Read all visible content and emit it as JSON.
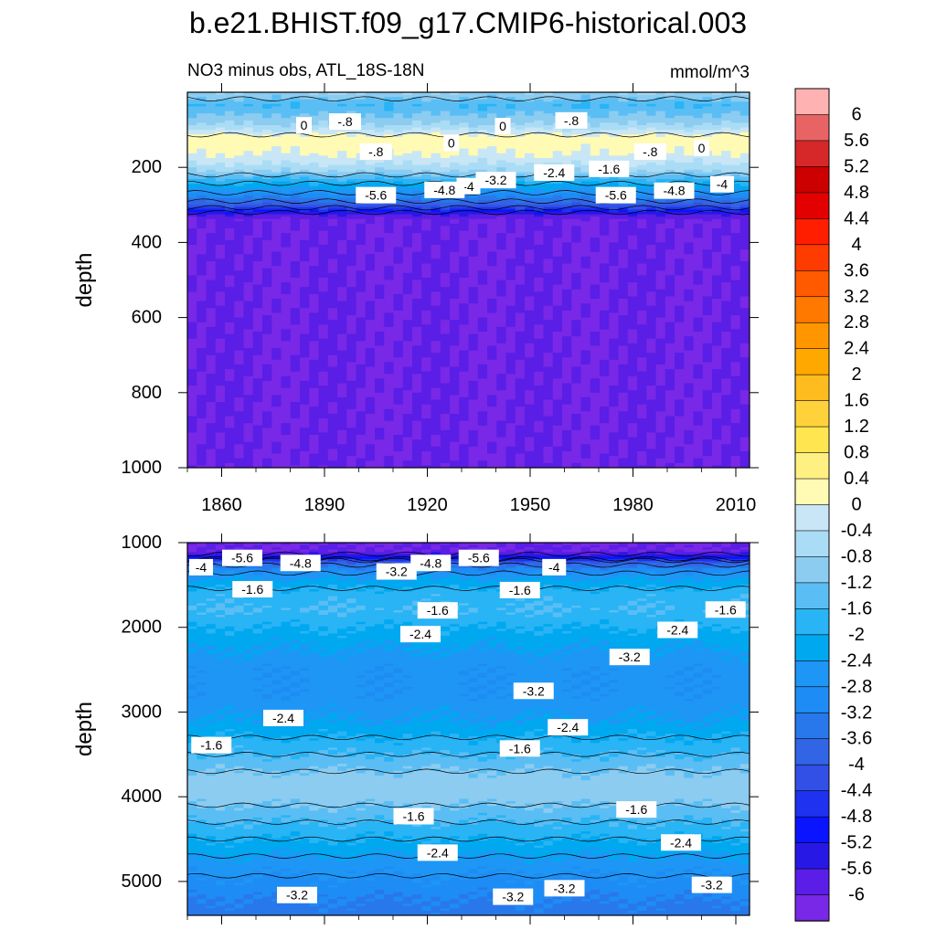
{
  "figure": {
    "title": "b.e21.BHIST.f09_g17.CMIP6-historical.003",
    "subtitle_left": "NO3 minus obs, ATL_18S-18N",
    "subtitle_right": "mmol/m^3"
  },
  "colorbar": {
    "labels": [
      "6",
      "5.6",
      "5.2",
      "4.8",
      "4.4",
      "4",
      "3.6",
      "3.2",
      "2.8",
      "2.4",
      "2",
      "1.6",
      "1.2",
      "0.8",
      "0.4",
      "0",
      "-0.4",
      "-0.8",
      "-1.2",
      "-1.6",
      "-2",
      "-2.4",
      "-2.8",
      "-3.2",
      "-3.6",
      "-4",
      "-4.4",
      "-4.8",
      "-5.2",
      "-5.6",
      "-6"
    ],
    "colors": [
      "#ffb2b2",
      "#e86464",
      "#d62828",
      "#cc0000",
      "#e20000",
      "#ff1e00",
      "#ff3c00",
      "#ff5a00",
      "#ff7800",
      "#ff9600",
      "#ffa800",
      "#ffbc1e",
      "#ffd23c",
      "#ffe650",
      "#fff082",
      "#fffab4",
      "#c8e6f5",
      "#aadcf5",
      "#8cccf0",
      "#5abef5",
      "#28b4f5",
      "#00a8f0",
      "#1e96f5",
      "#1e8cf5",
      "#2878eb",
      "#3264e6",
      "#3250e6",
      "#1e32f0",
      "#0a14ff",
      "#2818e6",
      "#5a1ee6",
      "#7828e6"
    ]
  },
  "chart_data": [
    {
      "type": "heatmap",
      "subtype": "filled contour",
      "panel": "upper",
      "xlabel": "",
      "ylabel": "depth",
      "xlim": [
        1850,
        2014
      ],
      "ylim": [
        1000,
        0
      ],
      "xticks": [
        1860,
        1890,
        1920,
        1950,
        1980,
        2010
      ],
      "yticks": [
        200,
        400,
        600,
        800,
        1000
      ],
      "grid": false,
      "profile": {
        "depth": [
          0,
          35,
          60,
          85,
          100,
          120,
          140,
          165,
          190,
          210,
          230,
          255,
          280,
          300,
          315,
          325,
          340,
          1000
        ],
        "value": [
          -0.8,
          -1.6,
          -1.2,
          -0.8,
          -0.4,
          0.2,
          0.2,
          0.0,
          -0.4,
          -0.8,
          -1.6,
          -2.4,
          -3.2,
          -4.0,
          -4.8,
          -5.6,
          -6.0,
          -6.0
        ]
      },
      "contour_labels": [
        {
          "text": "0",
          "x": 1884,
          "depth": 88
        },
        {
          "text": "-.8",
          "x": 1896,
          "depth": 78
        },
        {
          "text": "0",
          "x": 1942,
          "depth": 90
        },
        {
          "text": "-.8",
          "x": 1962,
          "depth": 75
        },
        {
          "text": "0",
          "x": 1927,
          "depth": 135
        },
        {
          "text": "0",
          "x": 2000,
          "depth": 148
        },
        {
          "text": "-.8",
          "x": 1905,
          "depth": 158
        },
        {
          "text": "-.8",
          "x": 1985,
          "depth": 158
        },
        {
          "text": "-1.6",
          "x": 1973,
          "depth": 204
        },
        {
          "text": "-2.4",
          "x": 1957,
          "depth": 214
        },
        {
          "text": "-3.2",
          "x": 1940,
          "depth": 234
        },
        {
          "text": "-4",
          "x": 1932,
          "depth": 250
        },
        {
          "text": "-4.8",
          "x": 1925,
          "depth": 260
        },
        {
          "text": "-5.6",
          "x": 1905,
          "depth": 274
        },
        {
          "text": "-5.6",
          "x": 1975,
          "depth": 274
        },
        {
          "text": "-4.8",
          "x": 1992,
          "depth": 262
        },
        {
          "text": "-4",
          "x": 2006,
          "depth": 245
        }
      ]
    },
    {
      "type": "heatmap",
      "subtype": "filled contour",
      "panel": "lower",
      "xlabel": "",
      "ylabel": "depth",
      "xlim": [
        1850,
        2014
      ],
      "ylim": [
        5400,
        1000
      ],
      "xticks": [
        1860,
        1890,
        1920,
        1950,
        1980,
        2010
      ],
      "yticks": [
        1000,
        2000,
        3000,
        4000,
        5000
      ],
      "grid": false,
      "profile": {
        "depth": [
          1000,
          1100,
          1170,
          1230,
          1300,
          1420,
          1600,
          1800,
          2000,
          2250,
          2500,
          2800,
          3100,
          3400,
          3600,
          3800,
          4000,
          4200,
          4400,
          4600,
          4800,
          5000,
          5200,
          5400
        ],
        "value": [
          -6.0,
          -6.0,
          -5.2,
          -4.0,
          -3.2,
          -2.4,
          -1.8,
          -1.6,
          -2.0,
          -2.4,
          -2.7,
          -2.7,
          -2.4,
          -1.8,
          -1.4,
          -1.0,
          -1.0,
          -1.4,
          -1.8,
          -2.2,
          -2.6,
          -2.9,
          -3.2,
          -3.4
        ]
      },
      "contour_labels": [
        {
          "text": "-4",
          "x": 1854,
          "depth": 1290
        },
        {
          "text": "-5.6",
          "x": 1866,
          "depth": 1180
        },
        {
          "text": "-4.8",
          "x": 1883,
          "depth": 1240
        },
        {
          "text": "-3.2",
          "x": 1911,
          "depth": 1340
        },
        {
          "text": "-4.8",
          "x": 1921,
          "depth": 1240
        },
        {
          "text": "-5.6",
          "x": 1935,
          "depth": 1180
        },
        {
          "text": "-4",
          "x": 1957,
          "depth": 1290
        },
        {
          "text": "-1.6",
          "x": 1869,
          "depth": 1550
        },
        {
          "text": "-1.6",
          "x": 1947,
          "depth": 1560
        },
        {
          "text": "-1.6",
          "x": 1923,
          "depth": 1800
        },
        {
          "text": "-1.6",
          "x": 2007,
          "depth": 1790
        },
        {
          "text": "-2.4",
          "x": 1918,
          "depth": 2080
        },
        {
          "text": "-2.4",
          "x": 1993,
          "depth": 2030
        },
        {
          "text": "-3.2",
          "x": 1979,
          "depth": 2350
        },
        {
          "text": "-3.2",
          "x": 1951,
          "depth": 2750
        },
        {
          "text": "-2.4",
          "x": 1878,
          "depth": 3070
        },
        {
          "text": "-2.4",
          "x": 1961,
          "depth": 3180
        },
        {
          "text": "-1.6",
          "x": 1857,
          "depth": 3390
        },
        {
          "text": "-1.6",
          "x": 1947,
          "depth": 3430
        },
        {
          "text": "-1.6",
          "x": 1981,
          "depth": 4150
        },
        {
          "text": "-1.6",
          "x": 1916,
          "depth": 4230
        },
        {
          "text": "-2.4",
          "x": 1923,
          "depth": 4660
        },
        {
          "text": "-2.4",
          "x": 1994,
          "depth": 4540
        },
        {
          "text": "-3.2",
          "x": 1882,
          "depth": 5160
        },
        {
          "text": "-3.2",
          "x": 1945,
          "depth": 5180
        },
        {
          "text": "-3.2",
          "x": 1960,
          "depth": 5080
        },
        {
          "text": "-3.2",
          "x": 2003,
          "depth": 5040
        }
      ]
    }
  ]
}
